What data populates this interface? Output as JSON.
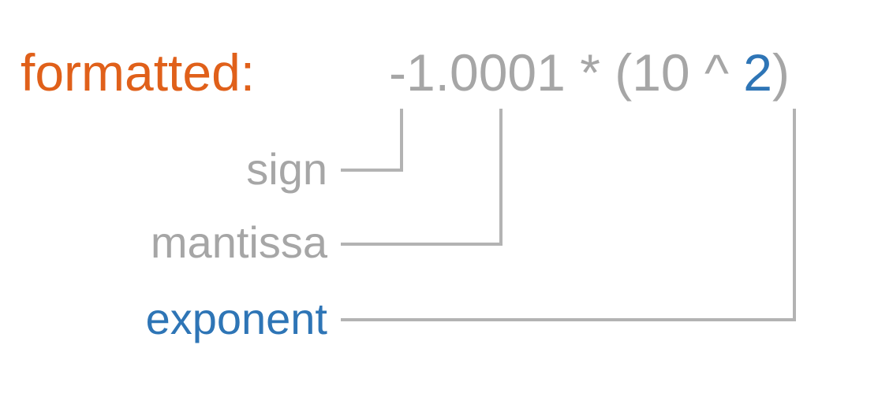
{
  "formatted_label": "formatted:",
  "expression": {
    "sign_and_mantissa": "-1.0001",
    "multiply": " * (",
    "base": "10",
    "caret": " ^ ",
    "exponent": "2",
    "close": ")"
  },
  "parts": {
    "sign": "sign",
    "mantissa": "mantissa",
    "exponent": "exponent"
  },
  "colors": {
    "formatted": "#e0601a",
    "value": "#a6a6a6",
    "exponent": "#2e75b6",
    "connector": "#b3b3b3"
  }
}
